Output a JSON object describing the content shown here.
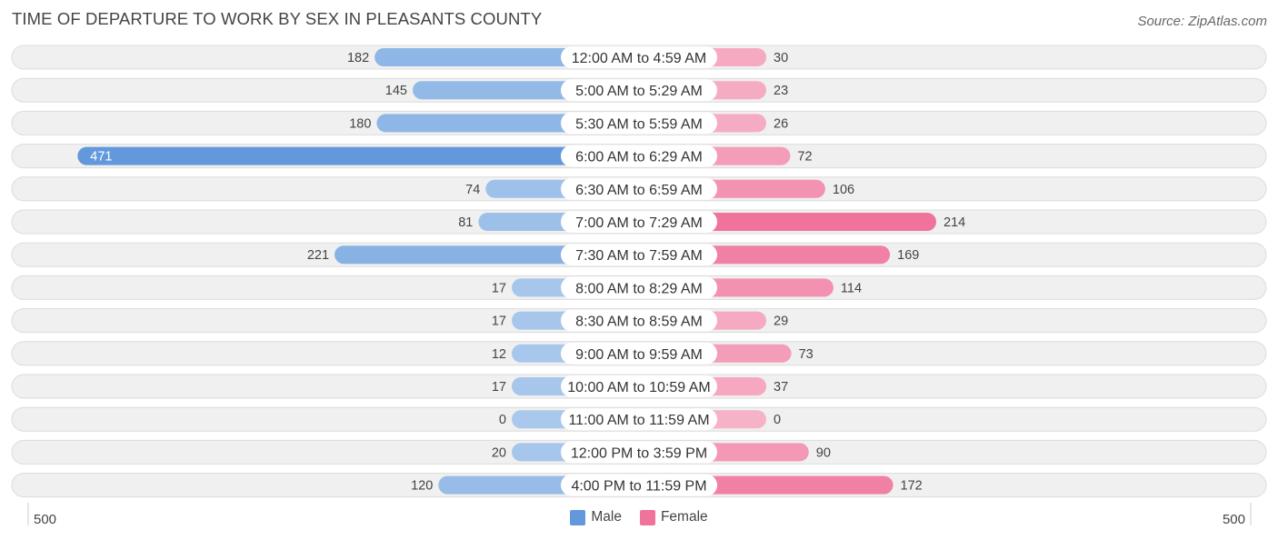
{
  "chart_data": {
    "type": "bar",
    "orientation": "horizontal-diverging",
    "title": "TIME OF DEPARTURE TO WORK BY SEX IN PLEASANTS COUNTY",
    "source": "Source: ZipAtlas.com",
    "categories": [
      "12:00 AM to 4:59 AM",
      "5:00 AM to 5:29 AM",
      "5:30 AM to 5:59 AM",
      "6:00 AM to 6:29 AM",
      "6:30 AM to 6:59 AM",
      "7:00 AM to 7:29 AM",
      "7:30 AM to 7:59 AM",
      "8:00 AM to 8:29 AM",
      "8:30 AM to 8:59 AM",
      "9:00 AM to 9:59 AM",
      "10:00 AM to 10:59 AM",
      "11:00 AM to 11:59 AM",
      "12:00 PM to 3:59 PM",
      "4:00 PM to 11:59 PM"
    ],
    "series": [
      {
        "name": "Male",
        "values": [
          182,
          145,
          180,
          471,
          74,
          81,
          221,
          17,
          17,
          12,
          17,
          0,
          20,
          120
        ]
      },
      {
        "name": "Female",
        "values": [
          30,
          23,
          26,
          72,
          106,
          214,
          169,
          114,
          29,
          73,
          37,
          0,
          90,
          172
        ]
      }
    ],
    "axis": {
      "left_label": "500",
      "right_label": "500",
      "max": 500
    },
    "legend": [
      "Male",
      "Female"
    ],
    "colors": {
      "male_strong": "#6399dc",
      "male_light": "#a9c8ec",
      "female_strong": "#f0739c",
      "female_light": "#f6b3c8",
      "row_bg": "#f0f0f0",
      "row_border": "#dcdcdc"
    }
  }
}
